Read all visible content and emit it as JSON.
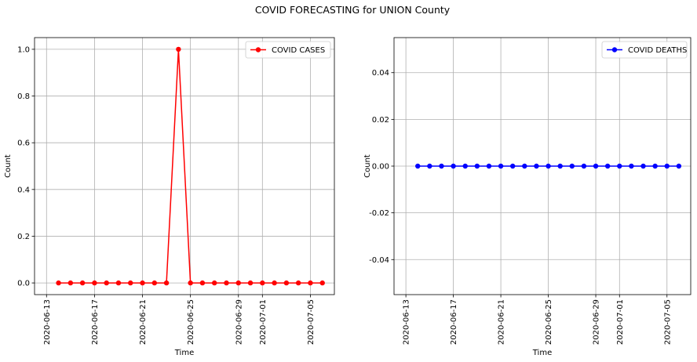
{
  "figure": {
    "title": "COVID FORECASTING for UNION County"
  },
  "chart_data": [
    {
      "type": "line",
      "title": "",
      "xlabel": "Time",
      "ylabel": "Count",
      "grid": true,
      "legend_position": "top-right",
      "xlim": [
        "2020-06-12",
        "2020-07-07"
      ],
      "ylim": [
        -0.05,
        1.05
      ],
      "x_ticks": [
        "2020-06-13",
        "2020-06-17",
        "2020-06-21",
        "2020-06-25",
        "2020-06-29",
        "2020-07-01",
        "2020-07-05"
      ],
      "y_ticks": [
        "0.0",
        "0.2",
        "0.4",
        "0.6",
        "0.8",
        "1.0"
      ],
      "x": [
        "2020-06-14",
        "2020-06-15",
        "2020-06-16",
        "2020-06-17",
        "2020-06-18",
        "2020-06-19",
        "2020-06-20",
        "2020-06-21",
        "2020-06-22",
        "2020-06-23",
        "2020-06-24",
        "2020-06-25",
        "2020-06-26",
        "2020-06-27",
        "2020-06-28",
        "2020-06-29",
        "2020-06-30",
        "2020-07-01",
        "2020-07-02",
        "2020-07-03",
        "2020-07-04",
        "2020-07-05",
        "2020-07-06"
      ],
      "series": [
        {
          "name": "COVID CASES",
          "color": "#ff0000",
          "values": [
            0,
            0,
            0,
            0,
            0,
            0,
            0,
            0,
            0,
            0,
            1,
            0,
            0,
            0,
            0,
            0,
            0,
            0,
            0,
            0,
            0,
            0,
            0
          ]
        }
      ]
    },
    {
      "type": "line",
      "title": "",
      "xlabel": "Time",
      "ylabel": "Count",
      "grid": true,
      "legend_position": "top-right",
      "xlim": [
        "2020-06-12",
        "2020-07-07"
      ],
      "ylim": [
        -0.055,
        0.055
      ],
      "x_ticks": [
        "2020-06-13",
        "2020-06-17",
        "2020-06-21",
        "2020-06-25",
        "2020-06-29",
        "2020-07-01",
        "2020-07-05"
      ],
      "y_ticks": [
        "0.04",
        "0.02",
        "0.00",
        "-0.02",
        "-0.04"
      ],
      "x": [
        "2020-06-14",
        "2020-06-15",
        "2020-06-16",
        "2020-06-17",
        "2020-06-18",
        "2020-06-19",
        "2020-06-20",
        "2020-06-21",
        "2020-06-22",
        "2020-06-23",
        "2020-06-24",
        "2020-06-25",
        "2020-06-26",
        "2020-06-27",
        "2020-06-28",
        "2020-06-29",
        "2020-06-30",
        "2020-07-01",
        "2020-07-02",
        "2020-07-03",
        "2020-07-04",
        "2020-07-05",
        "2020-07-06"
      ],
      "series": [
        {
          "name": "COVID DEATHS",
          "color": "#0000ff",
          "values": [
            0,
            0,
            0,
            0,
            0,
            0,
            0,
            0,
            0,
            0,
            0,
            0,
            0,
            0,
            0,
            0,
            0,
            0,
            0,
            0,
            0,
            0,
            0
          ]
        }
      ]
    }
  ]
}
